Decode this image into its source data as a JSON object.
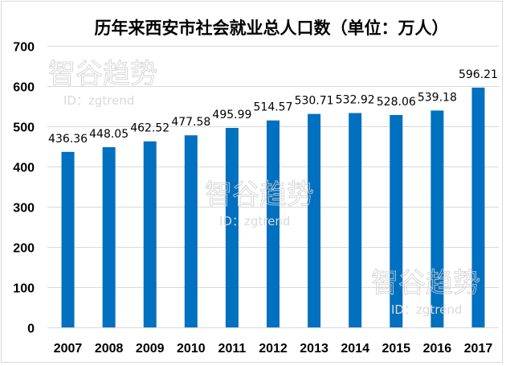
{
  "chart_data": {
    "type": "bar",
    "title": "历年来西安市社会就业总人口数（单位：万人）",
    "xlabel": "",
    "ylabel": "",
    "categories": [
      "2007",
      "2008",
      "2009",
      "2010",
      "2011",
      "2012",
      "2013",
      "2014",
      "2015",
      "2016",
      "2017"
    ],
    "values": [
      436.36,
      448.05,
      462.52,
      477.58,
      495.99,
      514.57,
      530.71,
      532.92,
      528.06,
      539.18,
      596.21
    ],
    "data_labels": [
      "436.36",
      "448.05",
      "462.52",
      "477.58",
      "495.99",
      "514.57",
      "530.71",
      "532.92",
      "528.06",
      "539.18",
      "596.21"
    ],
    "ylim": [
      0,
      700
    ],
    "yticks": [
      0,
      100,
      200,
      300,
      400,
      500,
      600,
      700
    ],
    "ytick_labels": [
      "0",
      "100",
      "200",
      "300",
      "400",
      "500",
      "600",
      "700"
    ],
    "grid": true,
    "legend": "none",
    "bar_color": "#0070c0",
    "gridline_color": "#d9d9d9"
  },
  "watermarks": [
    {
      "name": "智谷趋势",
      "id_text": "ID：zgtrend"
    },
    {
      "name": "智谷趋势",
      "id_text": "ID：zgtrend"
    },
    {
      "name": "智谷趋势",
      "id_text": "ID：zgtrend"
    }
  ]
}
